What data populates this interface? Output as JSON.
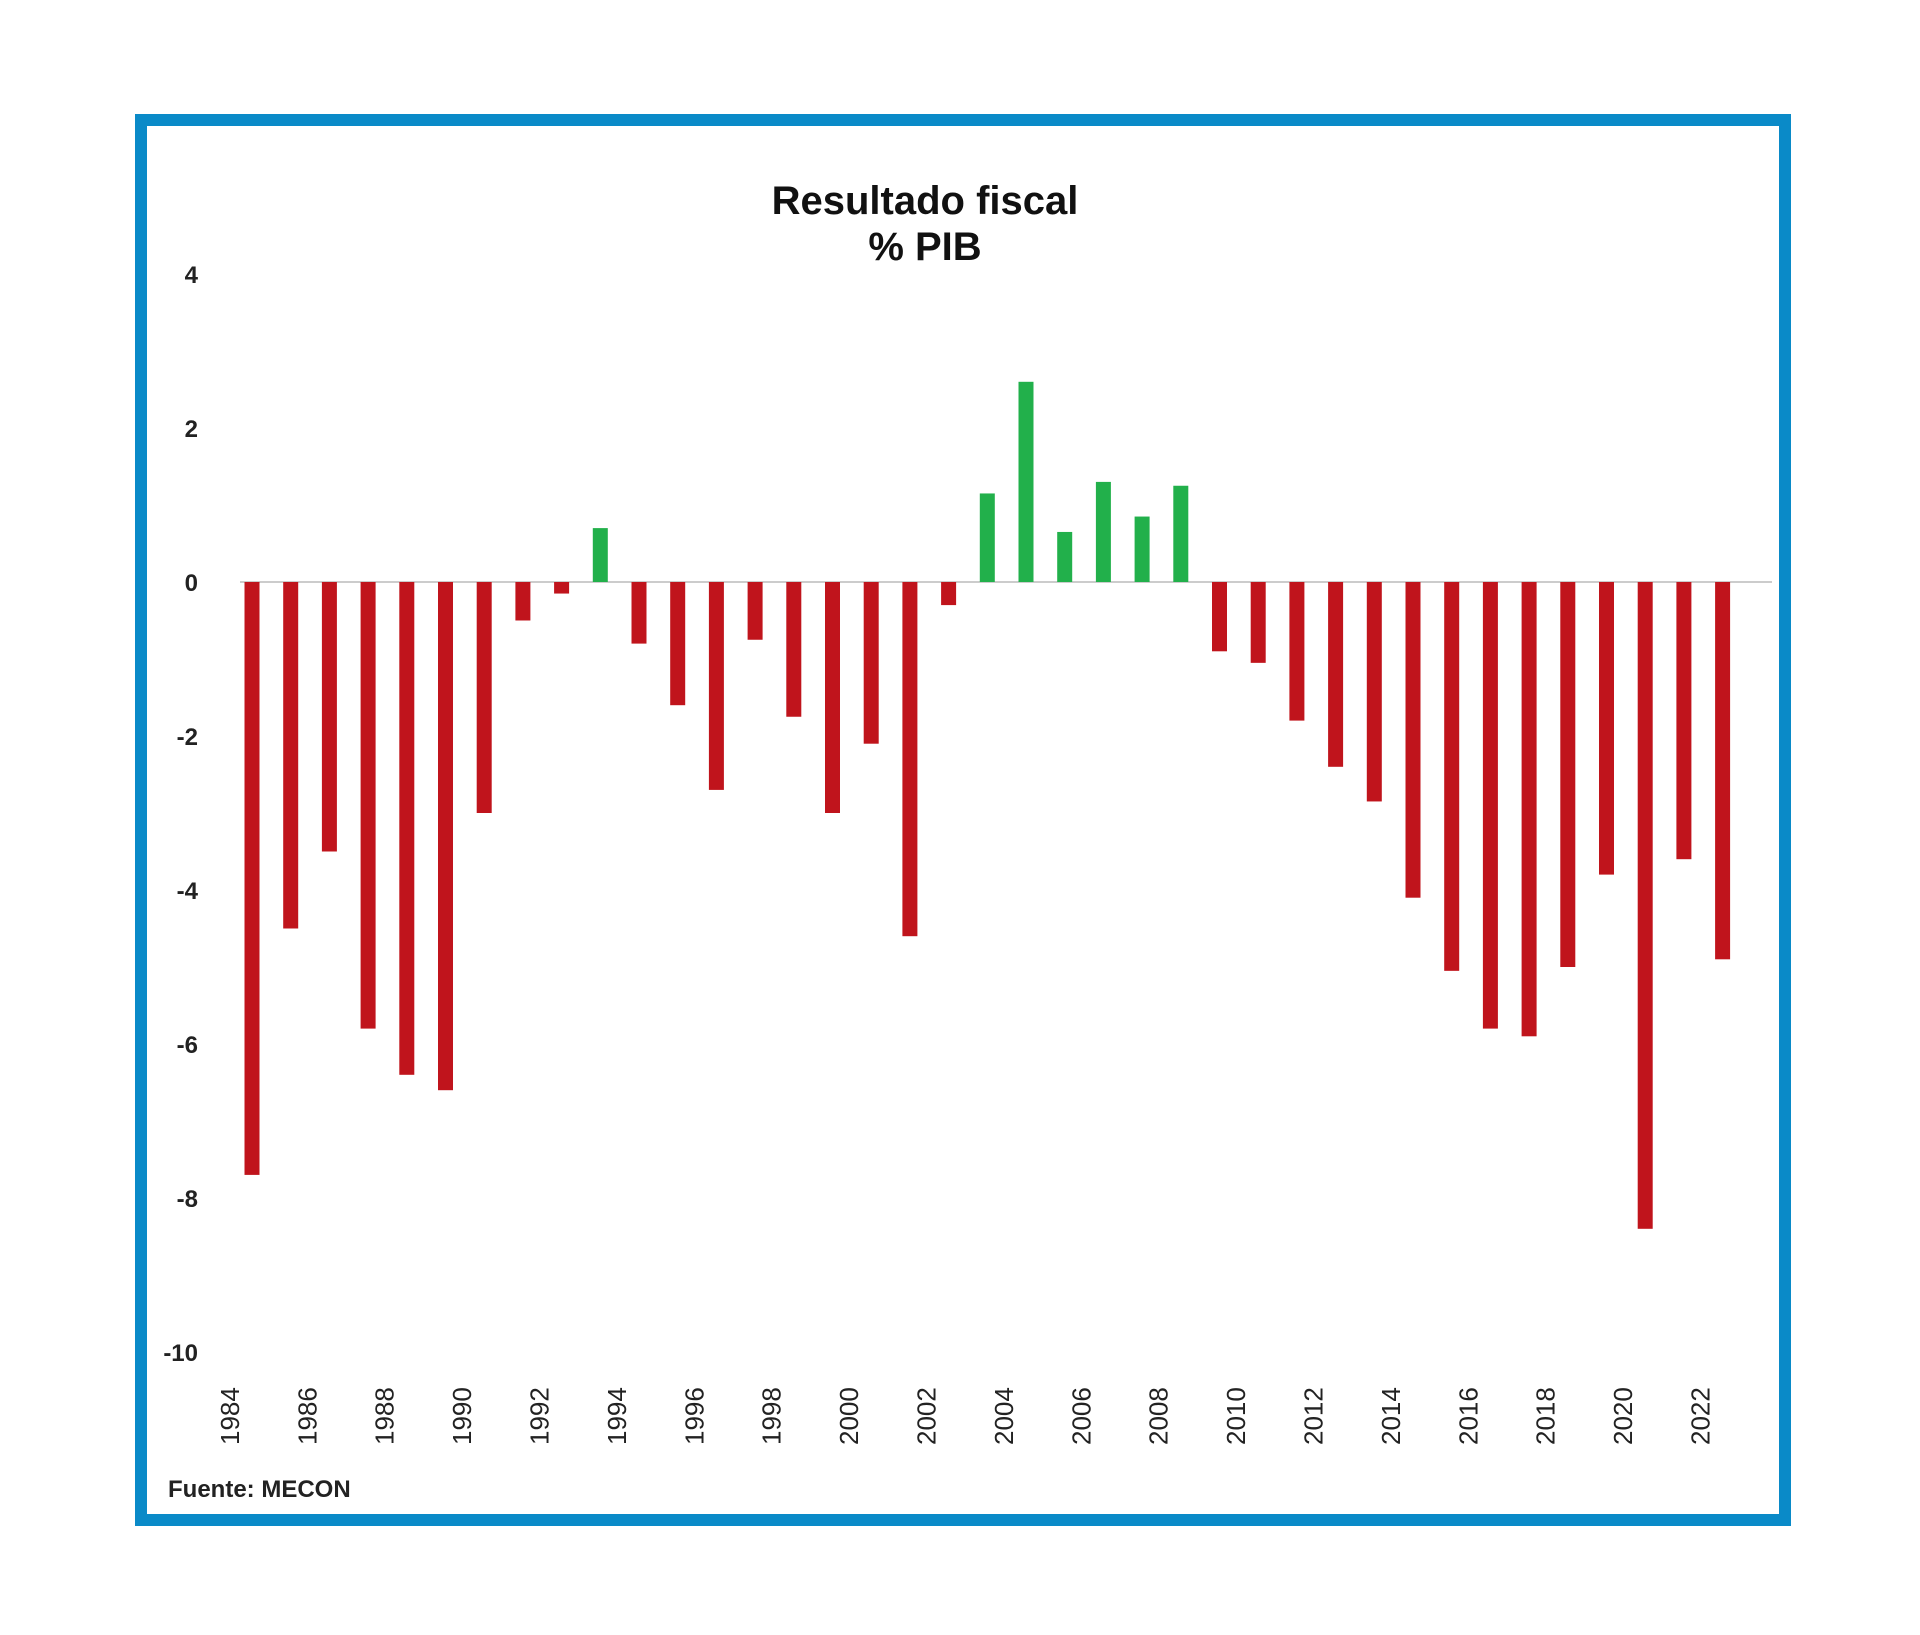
{
  "chart_data": {
    "type": "bar",
    "title": "Resultado fiscal",
    "subtitle": "% PIB",
    "xlabel": "",
    "ylabel": "",
    "ylim": [
      -10,
      4
    ],
    "yticks": [
      4,
      2,
      0,
      -2,
      -4,
      -6,
      -8,
      -10
    ],
    "grid": false,
    "legend": "none",
    "source": "Fuente: MECON",
    "colors": {
      "positive": "#22b04b",
      "negative": "#c0141c",
      "border": "#0a8ac8",
      "zero_line": "#cccccc"
    },
    "x_tick_labels": [
      "1984",
      "1986",
      "1988",
      "1990",
      "1992",
      "1994",
      "1996",
      "1998",
      "2000",
      "2002",
      "2004",
      "2006",
      "2008",
      "2010",
      "2012",
      "2014",
      "2016",
      "2018",
      "2020",
      "2022"
    ],
    "categories": [
      "1984",
      "1985",
      "1986",
      "1987",
      "1988",
      "1989",
      "1990",
      "1991",
      "1992",
      "1993",
      "1994",
      "1995",
      "1996",
      "1997",
      "1998",
      "1999",
      "2000",
      "2001",
      "2002",
      "2003",
      "2004",
      "2005",
      "2006",
      "2007",
      "2008",
      "2009",
      "2010",
      "2011",
      "2012",
      "2013",
      "2014",
      "2015",
      "2016",
      "2017",
      "2018",
      "2019",
      "2020",
      "2021",
      "2022"
    ],
    "values": [
      -7.7,
      -4.5,
      -3.5,
      -5.8,
      -6.4,
      -6.6,
      -3.0,
      -0.5,
      -0.15,
      0.7,
      -0.8,
      -1.6,
      -2.7,
      -0.75,
      -1.75,
      -3.0,
      -2.1,
      -4.6,
      -0.3,
      1.15,
      2.6,
      0.65,
      1.3,
      0.85,
      1.25,
      -0.9,
      -1.05,
      -1.8,
      -2.4,
      -2.85,
      -4.1,
      -5.05,
      -5.8,
      -5.9,
      -5.0,
      -3.8,
      -8.4,
      -3.6,
      -4.9
    ]
  }
}
